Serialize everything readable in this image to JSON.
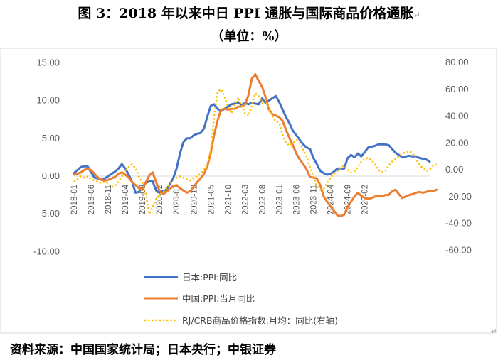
{
  "title": "图 3：2018 年以来中日 PPI 通胀与国际商品价格通胀",
  "subtitle": "（单位：%）",
  "source": "资料来源：中国国家统计局；日本央行；中银证券",
  "colors": {
    "japan": "#4472C4",
    "china": "#ED7D31",
    "crb": "#FFC000",
    "axis": "#D9D9D9"
  },
  "chart_data": {
    "type": "line",
    "x_labels": [
      "2018-01",
      "2018-06",
      "2018-11",
      "2019-04",
      "2019-09",
      "2020-02",
      "2020-07",
      "2020-12",
      "2021-05",
      "2021-10",
      "2022-03",
      "2022-08",
      "2023-01",
      "2023-06",
      "2023-11",
      "2024-04",
      "2024-09",
      "2025-02"
    ],
    "x_start": "2018-01",
    "y_left": {
      "min": -10,
      "max": 15,
      "step": 5,
      "tick_labels": [
        "15.00",
        "10.00",
        "5.00",
        "0.00",
        "-5.00",
        "-10.00"
      ]
    },
    "y_right": {
      "min": -60,
      "max": 80,
      "step": 20,
      "tick_labels": [
        "80.00",
        "60.00",
        "40.00",
        "20.00",
        "0.00",
        "-20.00",
        "-40.00",
        "-60.00"
      ]
    },
    "gridlines": false,
    "legend_position": "bottom-left",
    "series": [
      {
        "name": "日本:PPI:同比",
        "axis": "left",
        "style": "solid",
        "values": [
          0.4,
          0.8,
          1.2,
          1.3,
          1.3,
          0.5,
          -0.2,
          -0.3,
          -0.5,
          -0.3,
          0,
          0.3,
          0.6,
          1,
          1.6,
          1,
          0.2,
          -0.8,
          -2.2,
          -2.1,
          -1.4,
          -0.9,
          -0.7,
          -0.7,
          -1.9,
          -2.2,
          -2,
          -1.8,
          -1.1,
          -0.3,
          1,
          3,
          4.5,
          5,
          5,
          5.4,
          5.6,
          5.7,
          6.3,
          7.9,
          9.3,
          9.5,
          8.9,
          8.6,
          8.9,
          9.2,
          9.5,
          9.6,
          9.8,
          9.4,
          9.7,
          9.5,
          9.7,
          9.6,
          9.5,
          10.3,
          9.7,
          10,
          10.3,
          10.6,
          9.8,
          8.8,
          7.8,
          7,
          6,
          5.4,
          4.8,
          4.2,
          3.8,
          3.6,
          2.4,
          1.6,
          0.7,
          0.4,
          0.2,
          0.3,
          0.6,
          1,
          1,
          1,
          2.4,
          2.8,
          2.5,
          3,
          2.6,
          3.2,
          3.8,
          3.9,
          4,
          4.2,
          4.2,
          4.2,
          4.1,
          3.6,
          3.1,
          2.8,
          2.5,
          2.6,
          2.7,
          2.6,
          2.6,
          2.4,
          2.3,
          2.2,
          1.9
        ]
      },
      {
        "name": "中国:PPI:当月同比",
        "axis": "left",
        "style": "solid",
        "values": [
          0.2,
          0.3,
          0.5,
          0.8,
          1,
          0.8,
          0.3,
          -0.2,
          -0.5,
          -0.6,
          -0.5,
          -0.3,
          -0.1,
          0.3,
          0.5,
          0.2,
          -0.2,
          -0.8,
          -1.2,
          -1.6,
          -1.8,
          -0.8,
          0.1,
          0.5,
          -0.8,
          -1.9,
          -2.4,
          -2.1,
          -1.7,
          -1.3,
          -1.2,
          -1.6,
          -1.9,
          -2.2,
          -2,
          -1.4,
          -0.8,
          -0.3,
          0.3,
          1.3,
          3.1,
          5.5,
          7.4,
          8.8,
          8.9,
          8.8,
          8.9,
          8.9,
          9.2,
          9.2,
          9.5,
          10.7,
          12.9,
          13.5,
          12.6,
          11.8,
          10.5,
          8.8,
          8.2,
          8,
          7.8,
          7.3,
          6.1,
          5,
          4.1,
          3,
          2.2,
          1.6,
          0.9,
          -0.1,
          -0.2,
          -0.3,
          -1.2,
          -2.7,
          -3.4,
          -4,
          -4.6,
          -5.2,
          -5.3,
          -5.1,
          -4.1,
          -3.4,
          -2.7,
          -2.2,
          -2.6,
          -2.9,
          -3,
          -2.9,
          -2.7,
          -2.6,
          -2.7,
          -2.5,
          -2.5,
          -2,
          -1.8,
          -2.4,
          -2.9,
          -2.7,
          -2.5,
          -2.4,
          -2.2,
          -2.1,
          -2.2,
          -2.1,
          -1.9,
          -2,
          -1.8
        ]
      },
      {
        "name": "RJ/CRB商品价格指数:月均：同比(右轴)",
        "axis": "right",
        "style": "dotted",
        "values": [
          -9,
          -7,
          -5,
          -6,
          -5,
          -7,
          -8,
          -9,
          -10,
          -9,
          -10,
          -13,
          -12,
          -9,
          -5,
          -1,
          2,
          4,
          1,
          -5,
          -10,
          -18,
          -33,
          -28,
          -22,
          -19,
          -17,
          -14,
          -11,
          -8,
          -6,
          -5,
          -6,
          -7,
          -8,
          -6,
          -5,
          -3,
          0,
          4,
          15,
          40,
          58,
          60,
          55,
          47,
          42,
          48,
          54,
          48,
          42,
          40,
          48,
          57,
          55,
          50,
          52,
          46,
          40,
          36,
          35,
          26,
          20,
          18,
          20,
          22,
          20,
          15,
          10,
          2,
          -5,
          -12,
          -15,
          -14,
          -10,
          -6,
          -3,
          -1,
          2,
          3,
          0,
          -2,
          -1,
          2,
          6,
          8,
          9,
          7,
          4,
          0,
          -2,
          -1,
          3,
          6,
          8,
          10,
          12,
          13,
          14,
          12,
          8,
          4,
          1,
          -1,
          0,
          3,
          4
        ]
      }
    ]
  }
}
